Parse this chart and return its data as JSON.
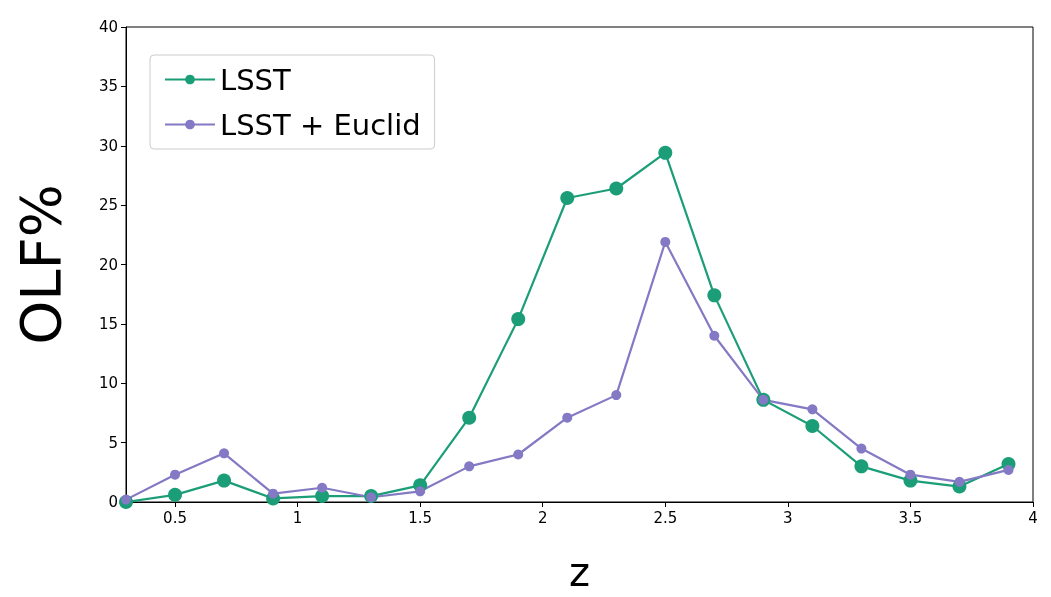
{
  "chart_data": {
    "type": "line",
    "xlabel": "z",
    "ylabel": "OLF%",
    "x": [
      0.3,
      0.5,
      0.7,
      0.9,
      1.1,
      1.3,
      1.5,
      1.7,
      1.9,
      2.1,
      2.3,
      2.5,
      2.7,
      2.9,
      3.1,
      3.3,
      3.5,
      3.7,
      3.9
    ],
    "series": [
      {
        "name": "LSST",
        "color": "#1b9e77",
        "values": [
          0.0,
          0.6,
          1.8,
          0.3,
          0.5,
          0.5,
          1.4,
          7.1,
          15.4,
          25.6,
          26.4,
          29.4,
          17.4,
          8.6,
          6.4,
          3.0,
          1.8,
          1.3,
          3.2
        ]
      },
      {
        "name": "LSST + Euclid",
        "color": "#8379c4",
        "values": [
          0.2,
          2.3,
          4.1,
          0.7,
          1.2,
          0.4,
          0.9,
          3.0,
          4.0,
          7.1,
          9.0,
          21.9,
          14.0,
          8.6,
          7.8,
          4.5,
          2.3,
          1.7,
          2.7
        ]
      }
    ],
    "xlim": [
      0.3,
      4.0
    ],
    "xticks": [
      0.5,
      1.0,
      1.5,
      2.0,
      2.5,
      3.0,
      3.5,
      4.0
    ],
    "ylim": [
      0,
      40
    ],
    "yticks": [
      0,
      5,
      10,
      15,
      20,
      25,
      30,
      35,
      40
    ],
    "grid": false,
    "legend": "top left",
    "marker": "circle",
    "line_style": "solid"
  }
}
